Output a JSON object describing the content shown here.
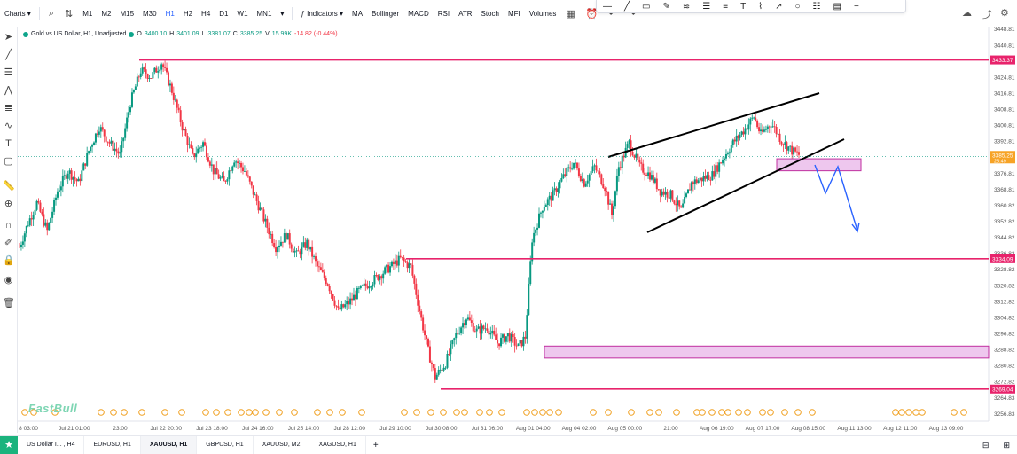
{
  "toolbar": {
    "charts_label": "Charts",
    "timeframes": [
      "M1",
      "M2",
      "M15",
      "M30",
      "H1",
      "H2",
      "H4",
      "D1",
      "W1",
      "MN1"
    ],
    "active_timeframe": "H1",
    "indicators_label": "Indicators",
    "indicator_shortcuts": [
      "MA",
      "Bollinger",
      "MACD",
      "RSI",
      "ATR",
      "Stoch",
      "MFI",
      "Volumes"
    ]
  },
  "legend": {
    "symbol": "Gold vs US Dollar, H1, Unadjusted",
    "open_label": "O",
    "open": "3400.10",
    "high_label": "H",
    "high": "3401.09",
    "low_label": "L",
    "low": "3381.07",
    "close_label": "C",
    "close": "3385.25",
    "volume_label": "V",
    "volume": "15.99K",
    "change": "-14.82 (-0.44%)"
  },
  "watermark": "FastBull",
  "bottom_tabs": [
    "US Dollar I... , H4",
    "EURUSD, H1",
    "XAUUSD, H1",
    "GBPUSD, H1",
    "XAUUSD, M2",
    "XAGUSD, H1"
  ],
  "active_tab": "XAUUSD, H1",
  "chart_data": {
    "type": "candlestick",
    "title": "Gold vs US Dollar, H1, Unadjusted",
    "ylim": [
      3253.0,
      3450.0
    ],
    "y_ticks": [
      "3448.81",
      "3440.81",
      "3432.82",
      "3424.81",
      "3416.81",
      "3408.81",
      "3400.81",
      "3392.81",
      "3384.81",
      "3376.81",
      "3368.81",
      "3360.82",
      "3352.82",
      "3344.82",
      "3336.82",
      "3328.82",
      "3320.82",
      "3312.82",
      "3304.82",
      "3296.82",
      "3288.82",
      "3280.82",
      "3272.82",
      "3264.83",
      "3256.83"
    ],
    "x_ticks": [
      "8 03:00",
      "Jul 21 01:00",
      "23:00",
      "Jul 22 20:00",
      "Jul 23 18:00",
      "Jul 24 16:00",
      "Jul 25 14:00",
      "Jul 28 12:00",
      "Jul 29 10:00",
      "Jul 30 08:00",
      "Jul 31 06:00",
      "Aug 01 04:00",
      "Aug 04 02:00",
      "Aug 05 00:00",
      "21:00",
      "Aug 06 19:00",
      "Aug 07 17:00",
      "Aug 08 15:00",
      "Aug 11 13:00",
      "Aug 12 11:00",
      "Aug 13 09:00"
    ],
    "price_path": [
      [
        0,
        3340
      ],
      [
        5,
        3352
      ],
      [
        10,
        3362
      ],
      [
        16,
        3348
      ],
      [
        22,
        3368
      ],
      [
        28,
        3378
      ],
      [
        34,
        3372
      ],
      [
        40,
        3388
      ],
      [
        46,
        3400
      ],
      [
        52,
        3392
      ],
      [
        58,
        3386
      ],
      [
        64,
        3412
      ],
      [
        70,
        3428
      ],
      [
        76,
        3425
      ],
      [
        82,
        3432
      ],
      [
        88,
        3418
      ],
      [
        94,
        3400
      ],
      [
        100,
        3385
      ],
      [
        106,
        3392
      ],
      [
        112,
        3378
      ],
      [
        118,
        3372
      ],
      [
        124,
        3384
      ],
      [
        130,
        3378
      ],
      [
        136,
        3365
      ],
      [
        142,
        3352
      ],
      [
        148,
        3340
      ],
      [
        154,
        3346
      ],
      [
        160,
        3336
      ],
      [
        166,
        3342
      ],
      [
        172,
        3330
      ],
      [
        178,
        3322
      ],
      [
        184,
        3308
      ],
      [
        190,
        3312
      ],
      [
        196,
        3318
      ],
      [
        202,
        3322
      ],
      [
        208,
        3326
      ],
      [
        214,
        3330
      ],
      [
        220,
        3334
      ],
      [
        226,
        3330
      ],
      [
        232,
        3304
      ],
      [
        236,
        3288
      ],
      [
        240,
        3275
      ],
      [
        246,
        3282
      ],
      [
        252,
        3296
      ],
      [
        258,
        3305
      ],
      [
        264,
        3298
      ],
      [
        270,
        3300
      ],
      [
        276,
        3292
      ],
      [
        282,
        3296
      ],
      [
        288,
        3290
      ],
      [
        292,
        3295
      ],
      [
        296,
        3344
      ],
      [
        302,
        3360
      ],
      [
        308,
        3366
      ],
      [
        314,
        3375
      ],
      [
        320,
        3382
      ],
      [
        326,
        3372
      ],
      [
        332,
        3380
      ],
      [
        338,
        3370
      ],
      [
        342,
        3356
      ],
      [
        346,
        3380
      ],
      [
        352,
        3392
      ],
      [
        358,
        3380
      ],
      [
        364,
        3376
      ],
      [
        370,
        3368
      ],
      [
        376,
        3366
      ],
      [
        382,
        3358
      ],
      [
        388,
        3372
      ],
      [
        394,
        3374
      ],
      [
        400,
        3376
      ],
      [
        406,
        3384
      ],
      [
        412,
        3392
      ],
      [
        418,
        3398
      ],
      [
        424,
        3405
      ],
      [
        428,
        3396
      ],
      [
        434,
        3402
      ],
      [
        440,
        3393
      ],
      [
        446,
        3388
      ],
      [
        450,
        3386
      ]
    ],
    "horizontal_levels": [
      {
        "price": 3433.37,
        "label": "3433.37",
        "x_start": "Jul 22 20:00"
      },
      {
        "price": 3334.09,
        "label": "3334.09",
        "x_start": "Jul 29 10:00"
      },
      {
        "price": 3269.04,
        "label": "3269.04",
        "x_start": "Jul 30 08:00"
      }
    ],
    "zones": [
      {
        "from": 3284.5,
        "to": 3290.5
      },
      {
        "from": 3378.0,
        "to": 3384.0
      }
    ],
    "trendlines": [
      "rising channel upper",
      "rising channel lower"
    ],
    "projection": "bearish arrow",
    "current_price": {
      "price": 3385.25,
      "label": "3385.25",
      "sublabel": "25:49"
    },
    "colors": {
      "up": "#089981",
      "down": "#f23645",
      "level": "#e8236b",
      "zone_fill": "#e8b4e8",
      "zone_border": "#c02fa0",
      "projection": "#2962ff"
    }
  }
}
